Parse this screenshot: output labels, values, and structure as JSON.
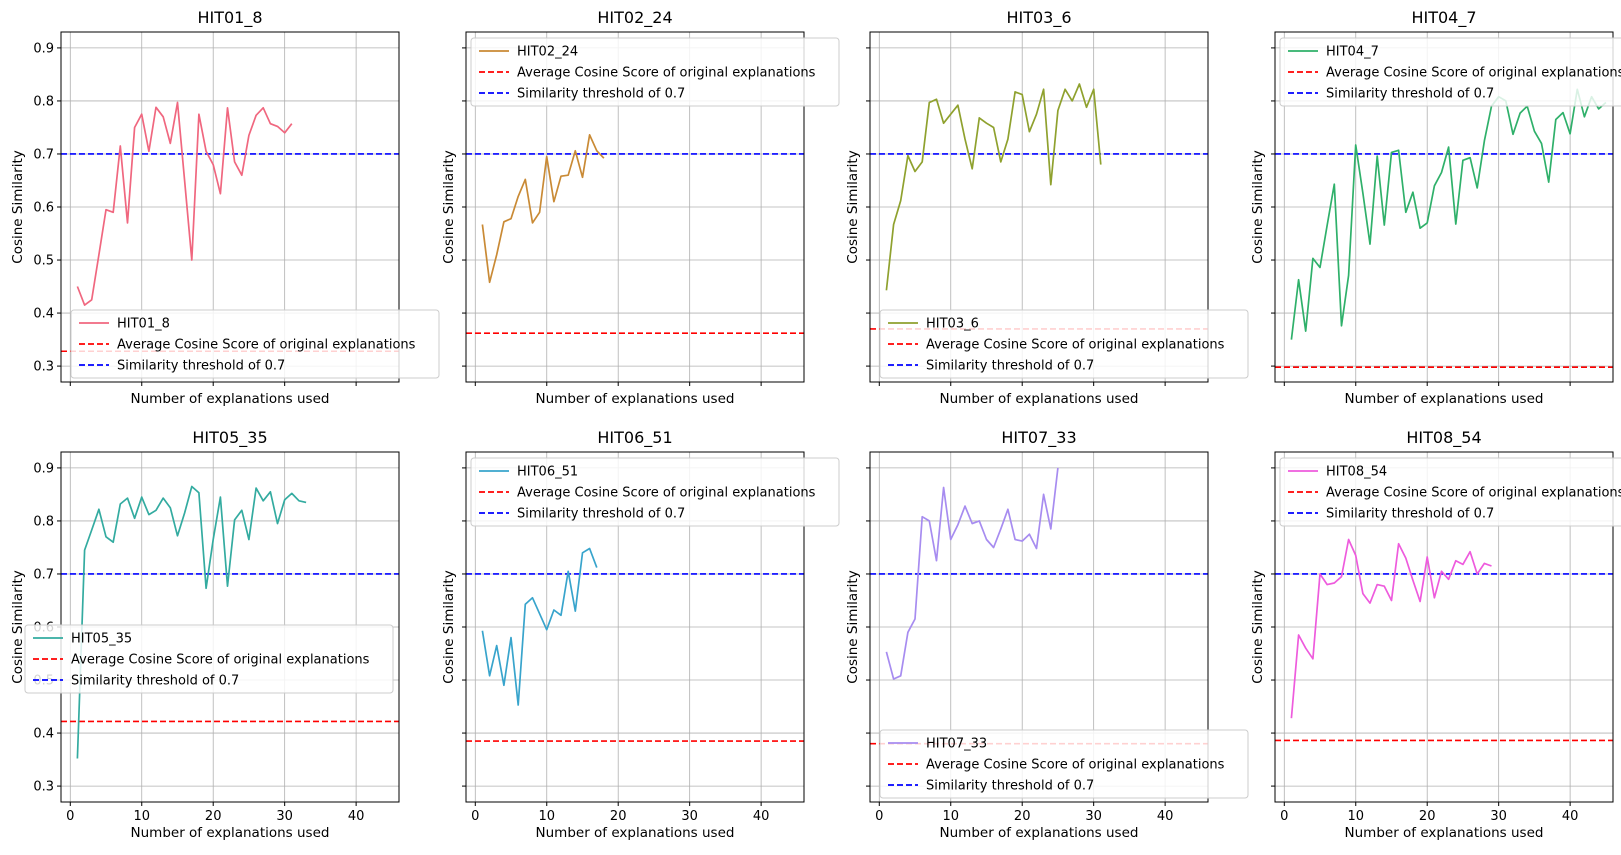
{
  "series_colors": [
    "#f0677f",
    "#c98a35",
    "#8fa12e",
    "#2fb06a",
    "#33aba0",
    "#38a4cc",
    "#a78cf0",
    "#ee5bdd"
  ],
  "threshold_color": "#0000ff",
  "average_color": "#ff0000",
  "chart_data": [
    {
      "type": "line",
      "title": "HIT01_8",
      "xlabel": "Number of explanations used",
      "ylabel": "Cosine Similarity",
      "xlim": [
        -1.3,
        46
      ],
      "ylim": [
        0.27,
        0.93
      ],
      "xticks": [
        0,
        10,
        20,
        30,
        40
      ],
      "yticks": [
        0.3,
        0.4,
        0.5,
        0.6,
        0.7,
        0.8,
        0.9
      ],
      "grid": true,
      "legend": "lower-right",
      "average": 0.328,
      "threshold": 0.7,
      "series_name": "HIT01_8",
      "legend_labels": [
        "HIT01_8",
        "Average Cosine Score of original explanations",
        "Similarity threshold of 0.7"
      ],
      "x": [
        1,
        2,
        3,
        4,
        5,
        6,
        7,
        8,
        9,
        10,
        11,
        12,
        13,
        14,
        15,
        16,
        17,
        18,
        19,
        20,
        21,
        22,
        23,
        24,
        25,
        26,
        27,
        28,
        29,
        30,
        31
      ],
      "y": [
        0.45,
        0.415,
        0.425,
        0.51,
        0.595,
        0.59,
        0.715,
        0.57,
        0.75,
        0.775,
        0.705,
        0.788,
        0.77,
        0.72,
        0.797,
        0.65,
        0.5,
        0.775,
        0.705,
        0.68,
        0.625,
        0.787,
        0.685,
        0.66,
        0.735,
        0.773,
        0.787,
        0.757,
        0.752,
        0.74,
        0.757
      ]
    },
    {
      "type": "line",
      "title": "HIT02_24",
      "xlabel": "Number of explanations used",
      "ylabel": "Cosine Similarity",
      "xlim": [
        -1.3,
        46
      ],
      "ylim": [
        0.27,
        0.93
      ],
      "xticks": [
        0,
        10,
        20,
        30,
        40
      ],
      "yticks": [
        0.3,
        0.4,
        0.5,
        0.6,
        0.7,
        0.8,
        0.9
      ],
      "grid": true,
      "legend": "upper-left",
      "average": 0.362,
      "threshold": 0.7,
      "series_name": "HIT02_24",
      "legend_labels": [
        "HIT02_24",
        "Average Cosine Score of original explanations",
        "Similarity threshold of 0.7"
      ],
      "x": [
        1,
        2,
        3,
        4,
        5,
        6,
        7,
        8,
        9,
        10,
        11,
        12,
        13,
        14,
        15,
        16,
        17,
        18
      ],
      "y": [
        0.567,
        0.458,
        0.51,
        0.572,
        0.578,
        0.62,
        0.652,
        0.57,
        0.59,
        0.695,
        0.61,
        0.658,
        0.66,
        0.706,
        0.656,
        0.736,
        0.706,
        0.692
      ]
    },
    {
      "type": "line",
      "title": "HIT03_6",
      "xlabel": "Number of explanations used",
      "ylabel": "Cosine Similarity",
      "xlim": [
        -1.3,
        46
      ],
      "ylim": [
        0.27,
        0.93
      ],
      "xticks": [
        0,
        10,
        20,
        30,
        40
      ],
      "yticks": [
        0.3,
        0.4,
        0.5,
        0.6,
        0.7,
        0.8,
        0.9
      ],
      "grid": true,
      "legend": "lower-right",
      "average": 0.37,
      "threshold": 0.7,
      "series_name": "HIT03_6",
      "legend_labels": [
        "HIT03_6",
        "Average Cosine Score of original explanations",
        "Similarity threshold of 0.7"
      ],
      "x": [
        1,
        2,
        3,
        4,
        5,
        6,
        7,
        8,
        9,
        10,
        11,
        12,
        13,
        14,
        15,
        16,
        17,
        18,
        19,
        20,
        21,
        22,
        23,
        24,
        25,
        26,
        27,
        28,
        29,
        30,
        31
      ],
      "y": [
        0.443,
        0.567,
        0.612,
        0.697,
        0.667,
        0.685,
        0.797,
        0.803,
        0.758,
        0.775,
        0.792,
        0.728,
        0.672,
        0.768,
        0.758,
        0.75,
        0.685,
        0.728,
        0.817,
        0.812,
        0.742,
        0.775,
        0.822,
        0.642,
        0.782,
        0.822,
        0.8,
        0.832,
        0.788,
        0.822,
        0.68
      ]
    },
    {
      "type": "line",
      "title": "HIT04_7",
      "xlabel": "Number of explanations used",
      "ylabel": "Cosine Similarity",
      "xlim": [
        -1.3,
        46
      ],
      "ylim": [
        0.27,
        0.93
      ],
      "xticks": [
        0,
        10,
        20,
        30,
        40
      ],
      "yticks": [
        0.3,
        0.4,
        0.5,
        0.6,
        0.7,
        0.8,
        0.9
      ],
      "grid": true,
      "legend": "upper-left",
      "average": 0.298,
      "threshold": 0.7,
      "series_name": "HIT04_7",
      "legend_labels": [
        "HIT04_7",
        "Average Cosine Score of original explanations",
        "Similarity threshold of 0.7"
      ],
      "x": [
        1,
        2,
        3,
        4,
        5,
        6,
        7,
        8,
        9,
        10,
        11,
        12,
        13,
        14,
        15,
        16,
        17,
        18,
        19,
        20,
        21,
        22,
        23,
        24,
        25,
        26,
        27,
        28,
        29,
        30,
        31,
        32,
        33,
        34,
        35,
        36,
        37,
        38,
        39,
        40,
        41,
        42,
        43,
        44,
        45
      ],
      "y": [
        0.35,
        0.463,
        0.366,
        0.503,
        0.486,
        0.566,
        0.643,
        0.376,
        0.471,
        0.717,
        0.626,
        0.53,
        0.696,
        0.566,
        0.703,
        0.707,
        0.59,
        0.628,
        0.56,
        0.57,
        0.64,
        0.665,
        0.713,
        0.568,
        0.688,
        0.693,
        0.636,
        0.725,
        0.79,
        0.808,
        0.8,
        0.737,
        0.777,
        0.79,
        0.743,
        0.72,
        0.647,
        0.765,
        0.778,
        0.738,
        0.822,
        0.77,
        0.808,
        0.785,
        0.797
      ]
    },
    {
      "type": "line",
      "title": "HIT05_35",
      "xlabel": "Number of explanations used",
      "ylabel": "Cosine Similarity",
      "xlim": [
        -1.3,
        46
      ],
      "ylim": [
        0.27,
        0.93
      ],
      "xticks": [
        0,
        10,
        20,
        30,
        40
      ],
      "yticks": [
        0.3,
        0.4,
        0.5,
        0.6,
        0.7,
        0.8,
        0.9
      ],
      "grid": true,
      "legend": "center-left",
      "average": 0.422,
      "threshold": 0.7,
      "series_name": "HIT05_35",
      "legend_labels": [
        "HIT05_35",
        "Average Cosine Score of original explanations",
        "Similarity threshold of 0.7"
      ],
      "x": [
        1,
        2,
        3,
        4,
        5,
        6,
        7,
        8,
        9,
        10,
        11,
        12,
        13,
        14,
        15,
        16,
        17,
        18,
        19,
        20,
        21,
        22,
        23,
        24,
        25,
        26,
        27,
        28,
        29,
        30,
        31,
        32,
        33
      ],
      "y": [
        0.352,
        0.745,
        0.783,
        0.822,
        0.77,
        0.76,
        0.832,
        0.843,
        0.805,
        0.845,
        0.812,
        0.82,
        0.843,
        0.825,
        0.772,
        0.815,
        0.865,
        0.853,
        0.673,
        0.765,
        0.845,
        0.677,
        0.802,
        0.82,
        0.765,
        0.862,
        0.838,
        0.855,
        0.795,
        0.84,
        0.852,
        0.838,
        0.835
      ]
    },
    {
      "type": "line",
      "title": "HIT06_51",
      "xlabel": "Number of explanations used",
      "ylabel": "Cosine Similarity",
      "xlim": [
        -1.3,
        46
      ],
      "ylim": [
        0.27,
        0.93
      ],
      "xticks": [
        0,
        10,
        20,
        30,
        40
      ],
      "yticks": [
        0.3,
        0.4,
        0.5,
        0.6,
        0.7,
        0.8,
        0.9
      ],
      "grid": true,
      "legend": "upper-left",
      "average": 0.385,
      "threshold": 0.7,
      "series_name": "HIT06_51",
      "legend_labels": [
        "HIT06_51",
        "Average Cosine Score of original explanations",
        "Similarity threshold of 0.7"
      ],
      "x": [
        1,
        2,
        3,
        4,
        5,
        6,
        7,
        8,
        9,
        10,
        11,
        12,
        13,
        14,
        15,
        16,
        17
      ],
      "y": [
        0.593,
        0.508,
        0.565,
        0.49,
        0.58,
        0.453,
        0.643,
        0.655,
        0.625,
        0.595,
        0.632,
        0.622,
        0.705,
        0.63,
        0.74,
        0.748,
        0.712
      ]
    },
    {
      "type": "line",
      "title": "HIT07_33",
      "xlabel": "Number of explanations used",
      "ylabel": "Cosine Similarity",
      "xlim": [
        -1.3,
        46
      ],
      "ylim": [
        0.27,
        0.93
      ],
      "xticks": [
        0,
        10,
        20,
        30,
        40
      ],
      "yticks": [
        0.3,
        0.4,
        0.5,
        0.6,
        0.7,
        0.8,
        0.9
      ],
      "grid": true,
      "legend": "lower-right",
      "average": 0.38,
      "threshold": 0.7,
      "series_name": "HIT07_33",
      "legend_labels": [
        "HIT07_33",
        "Average Cosine Score of original explanations",
        "Similarity threshold of 0.7"
      ],
      "x": [
        1,
        2,
        3,
        4,
        5,
        6,
        7,
        8,
        9,
        10,
        11,
        12,
        13,
        14,
        15,
        16,
        17,
        18,
        19,
        20,
        21,
        22,
        23,
        24,
        25
      ],
      "y": [
        0.553,
        0.502,
        0.508,
        0.59,
        0.615,
        0.808,
        0.8,
        0.725,
        0.863,
        0.765,
        0.793,
        0.828,
        0.795,
        0.8,
        0.765,
        0.75,
        0.785,
        0.822,
        0.765,
        0.762,
        0.775,
        0.748,
        0.85,
        0.785,
        0.9
      ]
    },
    {
      "type": "line",
      "title": "HIT08_54",
      "xlabel": "Number of explanations used",
      "ylabel": "Cosine Similarity",
      "xlim": [
        -1.3,
        46
      ],
      "ylim": [
        0.27,
        0.93
      ],
      "xticks": [
        0,
        10,
        20,
        30,
        40
      ],
      "yticks": [
        0.3,
        0.4,
        0.5,
        0.6,
        0.7,
        0.8,
        0.9
      ],
      "grid": true,
      "legend": "upper-left",
      "average": 0.386,
      "threshold": 0.7,
      "series_name": "HIT08_54",
      "legend_labels": [
        "HIT08_54",
        "Average Cosine Score of original explanations",
        "Similarity threshold of 0.7"
      ],
      "x": [
        1,
        2,
        3,
        4,
        5,
        6,
        7,
        8,
        9,
        10,
        11,
        12,
        13,
        14,
        15,
        16,
        17,
        18,
        19,
        20,
        21,
        22,
        23,
        24,
        25,
        26,
        27,
        28,
        29
      ],
      "y": [
        0.428,
        0.585,
        0.56,
        0.54,
        0.7,
        0.68,
        0.683,
        0.695,
        0.765,
        0.735,
        0.663,
        0.645,
        0.68,
        0.677,
        0.65,
        0.757,
        0.73,
        0.688,
        0.648,
        0.732,
        0.655,
        0.705,
        0.69,
        0.725,
        0.718,
        0.742,
        0.7,
        0.72,
        0.715
      ]
    }
  ]
}
